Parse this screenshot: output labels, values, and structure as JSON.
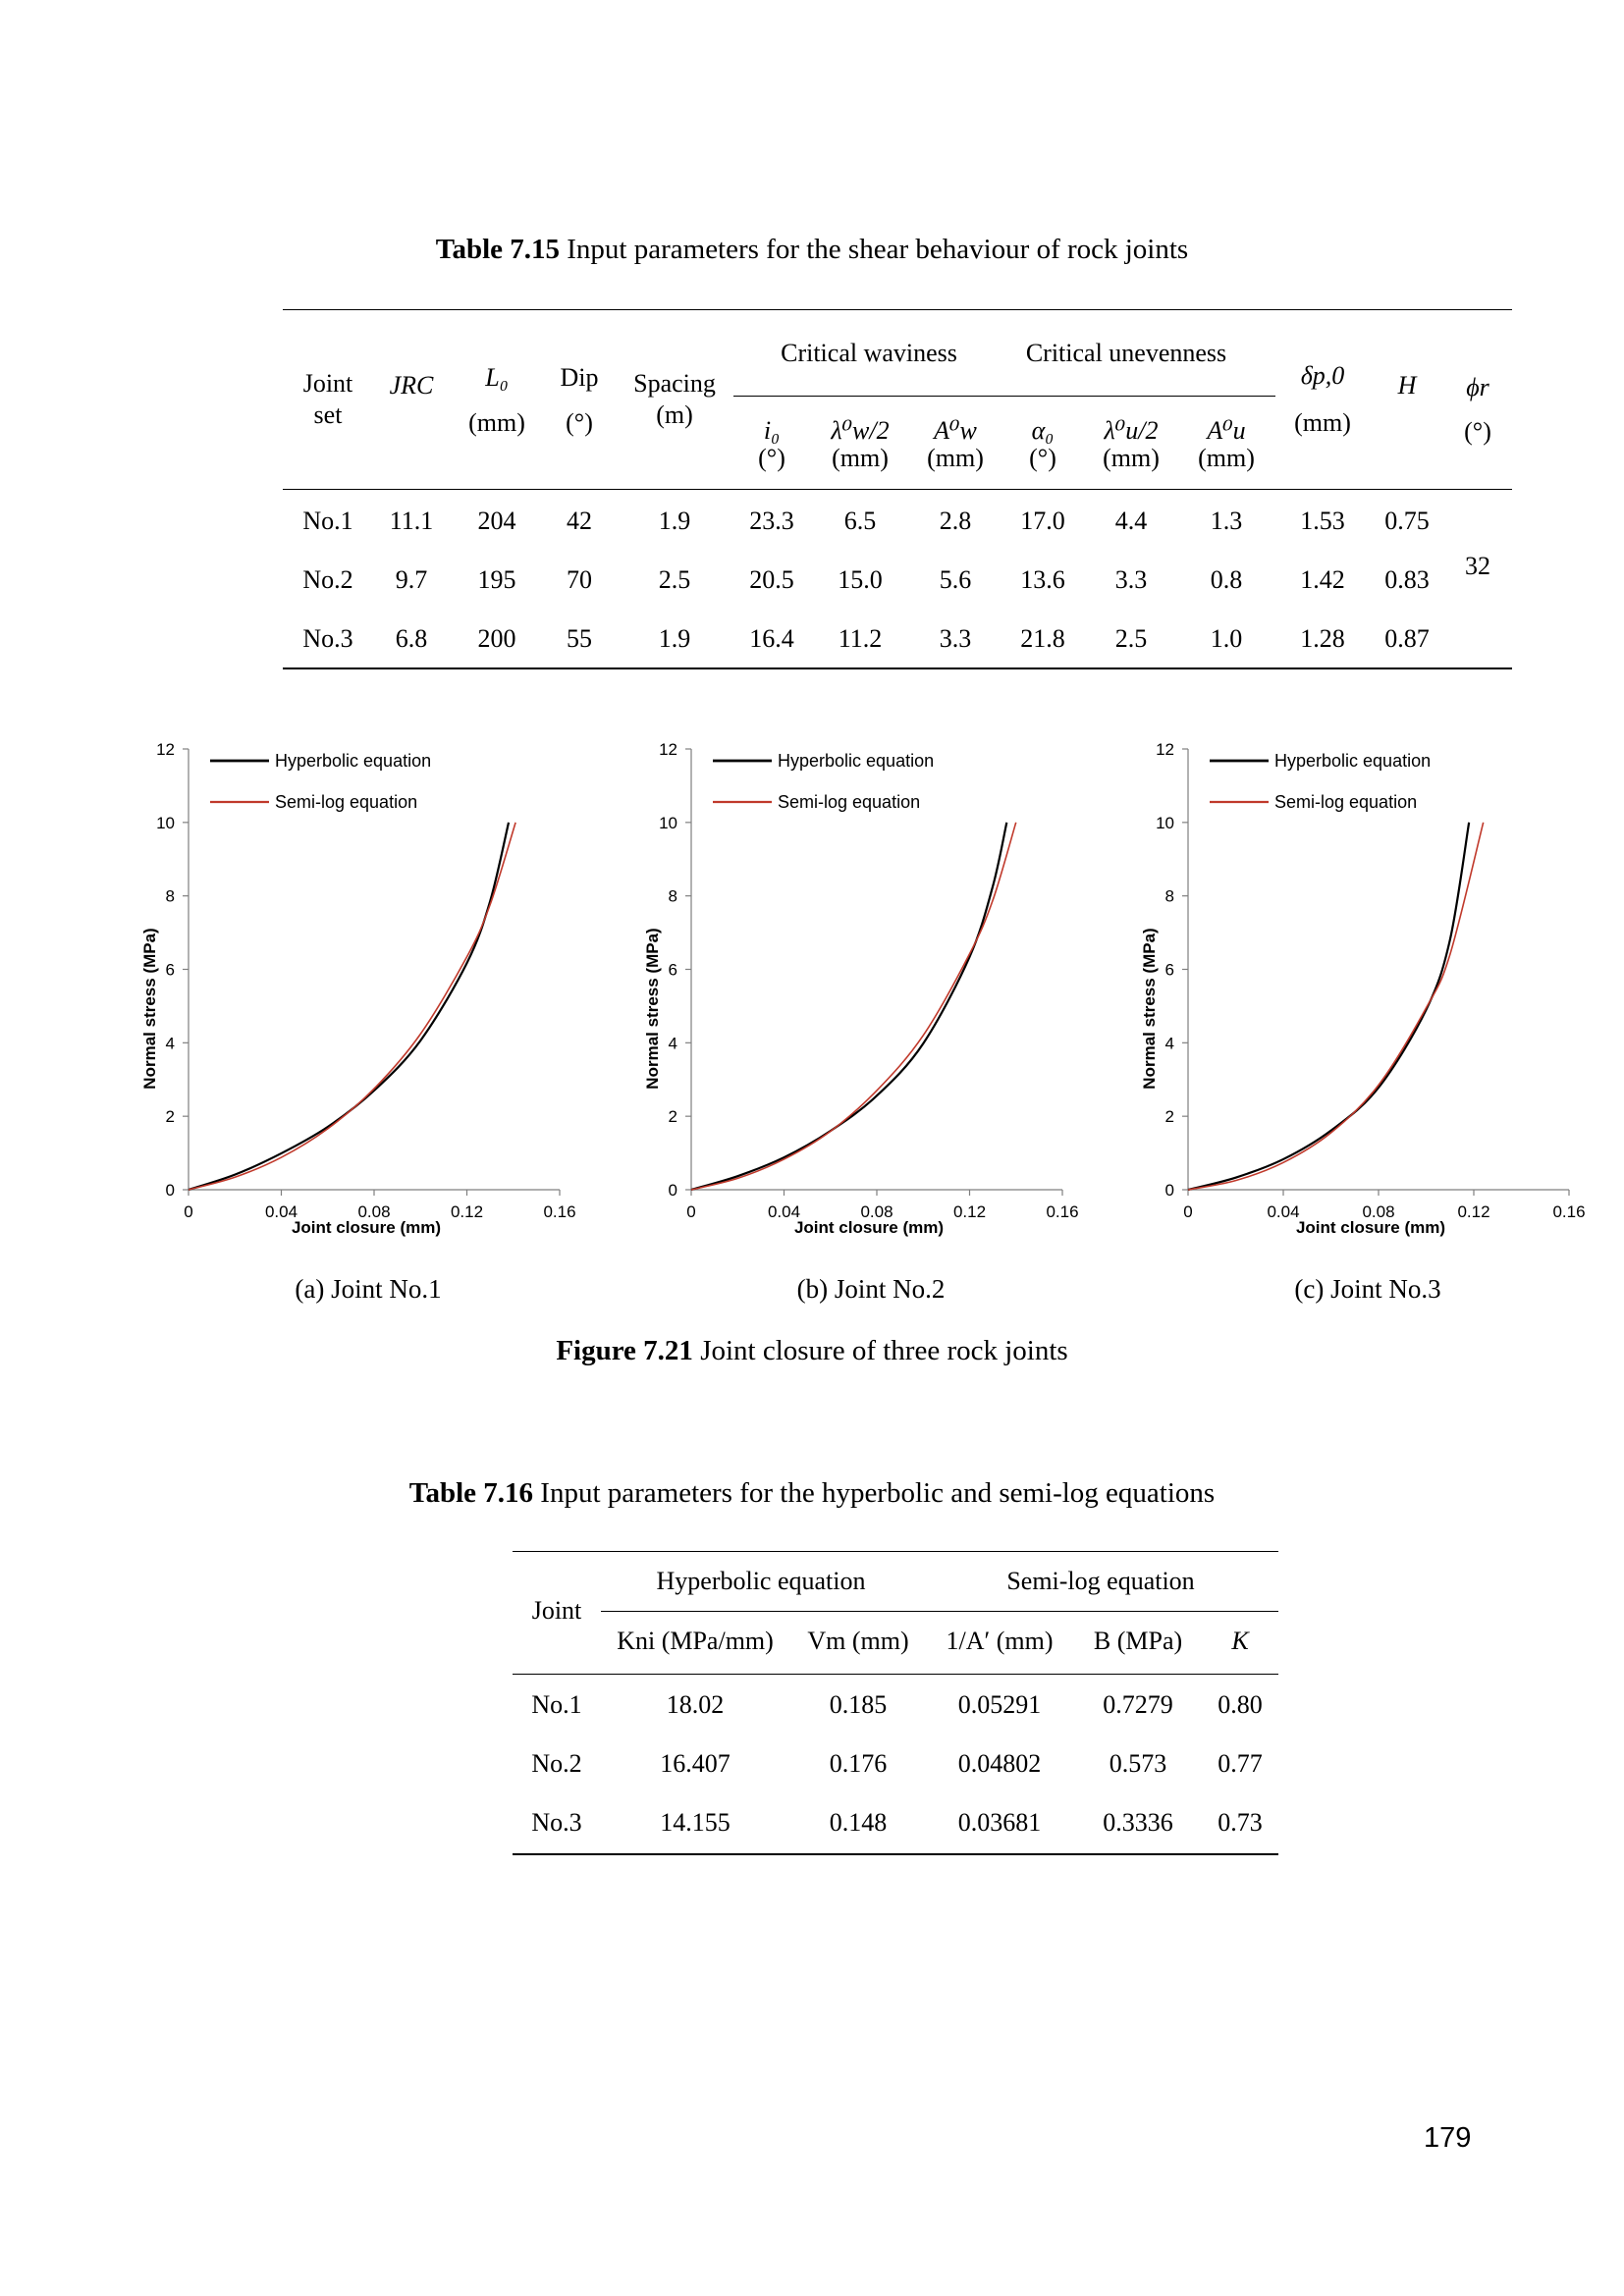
{
  "table1": {
    "caption_label": "Table 7.15",
    "caption_text": " Input parameters for the shear behaviour of rock joints",
    "headers": {
      "joint_set": [
        "Joint",
        "set"
      ],
      "jrc": "JRC",
      "l0": "L₀",
      "l0_unit": "(mm)",
      "dip": "Dip",
      "dip_unit": "(°)",
      "spacing": "Spacing",
      "spacing_unit": "(m)",
      "group_waviness": "Critical waviness",
      "group_unevenness": "Critical unevenness",
      "i0": "i₀",
      "i0_unit": "(°)",
      "lw": "λ⁰w/2",
      "lw_unit": "(mm)",
      "aw": "A⁰w",
      "aw_unit": "(mm)",
      "alpha0": "α₀",
      "alpha0_unit": "(°)",
      "lu": "λ⁰u/2",
      "lu_unit": "(mm)",
      "au": "A⁰u",
      "au_unit": "(mm)",
      "delta": "δp,0",
      "delta_unit": "(mm)",
      "h": "H",
      "phi": "ϕr",
      "phi_unit": "(°)"
    },
    "rows": [
      [
        "No.1",
        "11.1",
        "204",
        "42",
        "1.9",
        "23.3",
        "6.5",
        "2.8",
        "17.0",
        "4.4",
        "1.3",
        "1.53",
        "0.75"
      ],
      [
        "No.2",
        "9.7",
        "195",
        "70",
        "2.5",
        "20.5",
        "15.0",
        "5.6",
        "13.6",
        "3.3",
        "0.8",
        "1.42",
        "0.83"
      ],
      [
        "No.3",
        "6.8",
        "200",
        "55",
        "1.9",
        "16.4",
        "11.2",
        "3.3",
        "21.8",
        "2.5",
        "1.0",
        "1.28",
        "0.87"
      ]
    ],
    "phi_r_value": "32"
  },
  "figure": {
    "caption_label": "Figure 7.21",
    "caption_text": " Joint closure of three rock joints",
    "subcaptions": [
      "(a) Joint No.1",
      "(b) Joint No.2",
      "(c) Joint No.3"
    ]
  },
  "colors": {
    "hyperbolic": "#000000",
    "semilog": "#c0392b",
    "axis": "#7f7f7f"
  },
  "chart_data": [
    {
      "type": "line",
      "title": "",
      "xlabel": "Joint closure (mm)",
      "ylabel": "Normal stress (MPa)",
      "xlim": [
        0,
        0.16
      ],
      "ylim": [
        0,
        12
      ],
      "xticks": [
        "0",
        "0.04",
        "0.08",
        "0.12",
        "0.16"
      ],
      "yticks": [
        "0",
        "2",
        "4",
        "6",
        "8",
        "10",
        "12"
      ],
      "legend": "top-left",
      "grid": false,
      "series": [
        {
          "name": "Hyperbolic equation",
          "x": [
            0,
            0.02,
            0.04,
            0.06,
            0.08,
            0.1,
            0.12,
            0.13,
            0.138
          ],
          "y": [
            0,
            0.41,
            0.99,
            1.71,
            2.7,
            4.06,
            6.17,
            7.85,
            10
          ]
        },
        {
          "name": "Semi-log equation",
          "x": [
            0,
            0.02,
            0.04,
            0.06,
            0.08,
            0.1,
            0.12,
            0.13,
            0.141
          ],
          "y": [
            0,
            0.34,
            0.88,
            1.66,
            2.75,
            4.24,
            6.34,
            7.76,
            10
          ]
        }
      ]
    },
    {
      "type": "line",
      "title": "",
      "xlabel": "Joint closure (mm)",
      "ylabel": "Normal stress (MPa)",
      "xlim": [
        0,
        0.16
      ],
      "ylim": [
        0,
        12
      ],
      "xticks": [
        "0",
        "0.04",
        "0.08",
        "0.12",
        "0.16"
      ],
      "yticks": [
        "0",
        "2",
        "4",
        "6",
        "8",
        "10",
        "12"
      ],
      "legend": "top-left",
      "grid": false,
      "series": [
        {
          "name": "Hyperbolic equation",
          "x": [
            0,
            0.02,
            0.04,
            0.06,
            0.08,
            0.1,
            0.12,
            0.13,
            0.136
          ],
          "y": [
            0,
            0.37,
            0.88,
            1.6,
            2.56,
            3.98,
            6.34,
            8.26,
            10
          ]
        },
        {
          "name": "Semi-log equation",
          "x": [
            0,
            0.02,
            0.04,
            0.06,
            0.08,
            0.1,
            0.12,
            0.13,
            0.14
          ],
          "y": [
            0,
            0.31,
            0.83,
            1.59,
            2.7,
            4.2,
            6.42,
            7.88,
            10
          ]
        }
      ]
    },
    {
      "type": "line",
      "title": "",
      "xlabel": "Joint closure (mm)",
      "ylabel": "Normal stress (MPa)",
      "xlim": [
        0,
        0.16
      ],
      "ylim": [
        0,
        12
      ],
      "xticks": [
        "0",
        "0.04",
        "0.08",
        "0.12",
        "0.16"
      ],
      "yticks": [
        "0",
        "2",
        "4",
        "6",
        "8",
        "10",
        "12"
      ],
      "legend": "top-left",
      "grid": false,
      "series": [
        {
          "name": "Hyperbolic equation",
          "x": [
            0,
            0.02,
            0.04,
            0.06,
            0.08,
            0.1,
            0.11,
            0.118
          ],
          "y": [
            0,
            0.33,
            0.83,
            1.61,
            2.78,
            4.9,
            6.8,
            10
          ]
        },
        {
          "name": "Semi-log equation",
          "x": [
            0,
            0.02,
            0.04,
            0.06,
            0.08,
            0.1,
            0.11,
            0.124
          ],
          "y": [
            0,
            0.25,
            0.74,
            1.55,
            2.85,
            4.95,
            6.4,
            10
          ]
        }
      ]
    }
  ],
  "table2": {
    "caption_label": "Table 7.16",
    "caption_text": " Input parameters for the hyperbolic and semi-log equations",
    "headers": {
      "joint": "Joint",
      "group_hyperbolic": "Hyperbolic equation",
      "group_semilog": "Semi-log equation",
      "kni": "Kni (MPa/mm)",
      "vm": "Vm (mm)",
      "inv_a": "1/A′ (mm)",
      "b": "B (MPa)",
      "k": "K"
    },
    "rows": [
      [
        "No.1",
        "18.02",
        "0.185",
        "0.05291",
        "0.7279",
        "0.80"
      ],
      [
        "No.2",
        "16.407",
        "0.176",
        "0.04802",
        "0.573",
        "0.77"
      ],
      [
        "No.3",
        "14.155",
        "0.148",
        "0.03681",
        "0.3336",
        "0.73"
      ]
    ]
  },
  "page_number": "179"
}
